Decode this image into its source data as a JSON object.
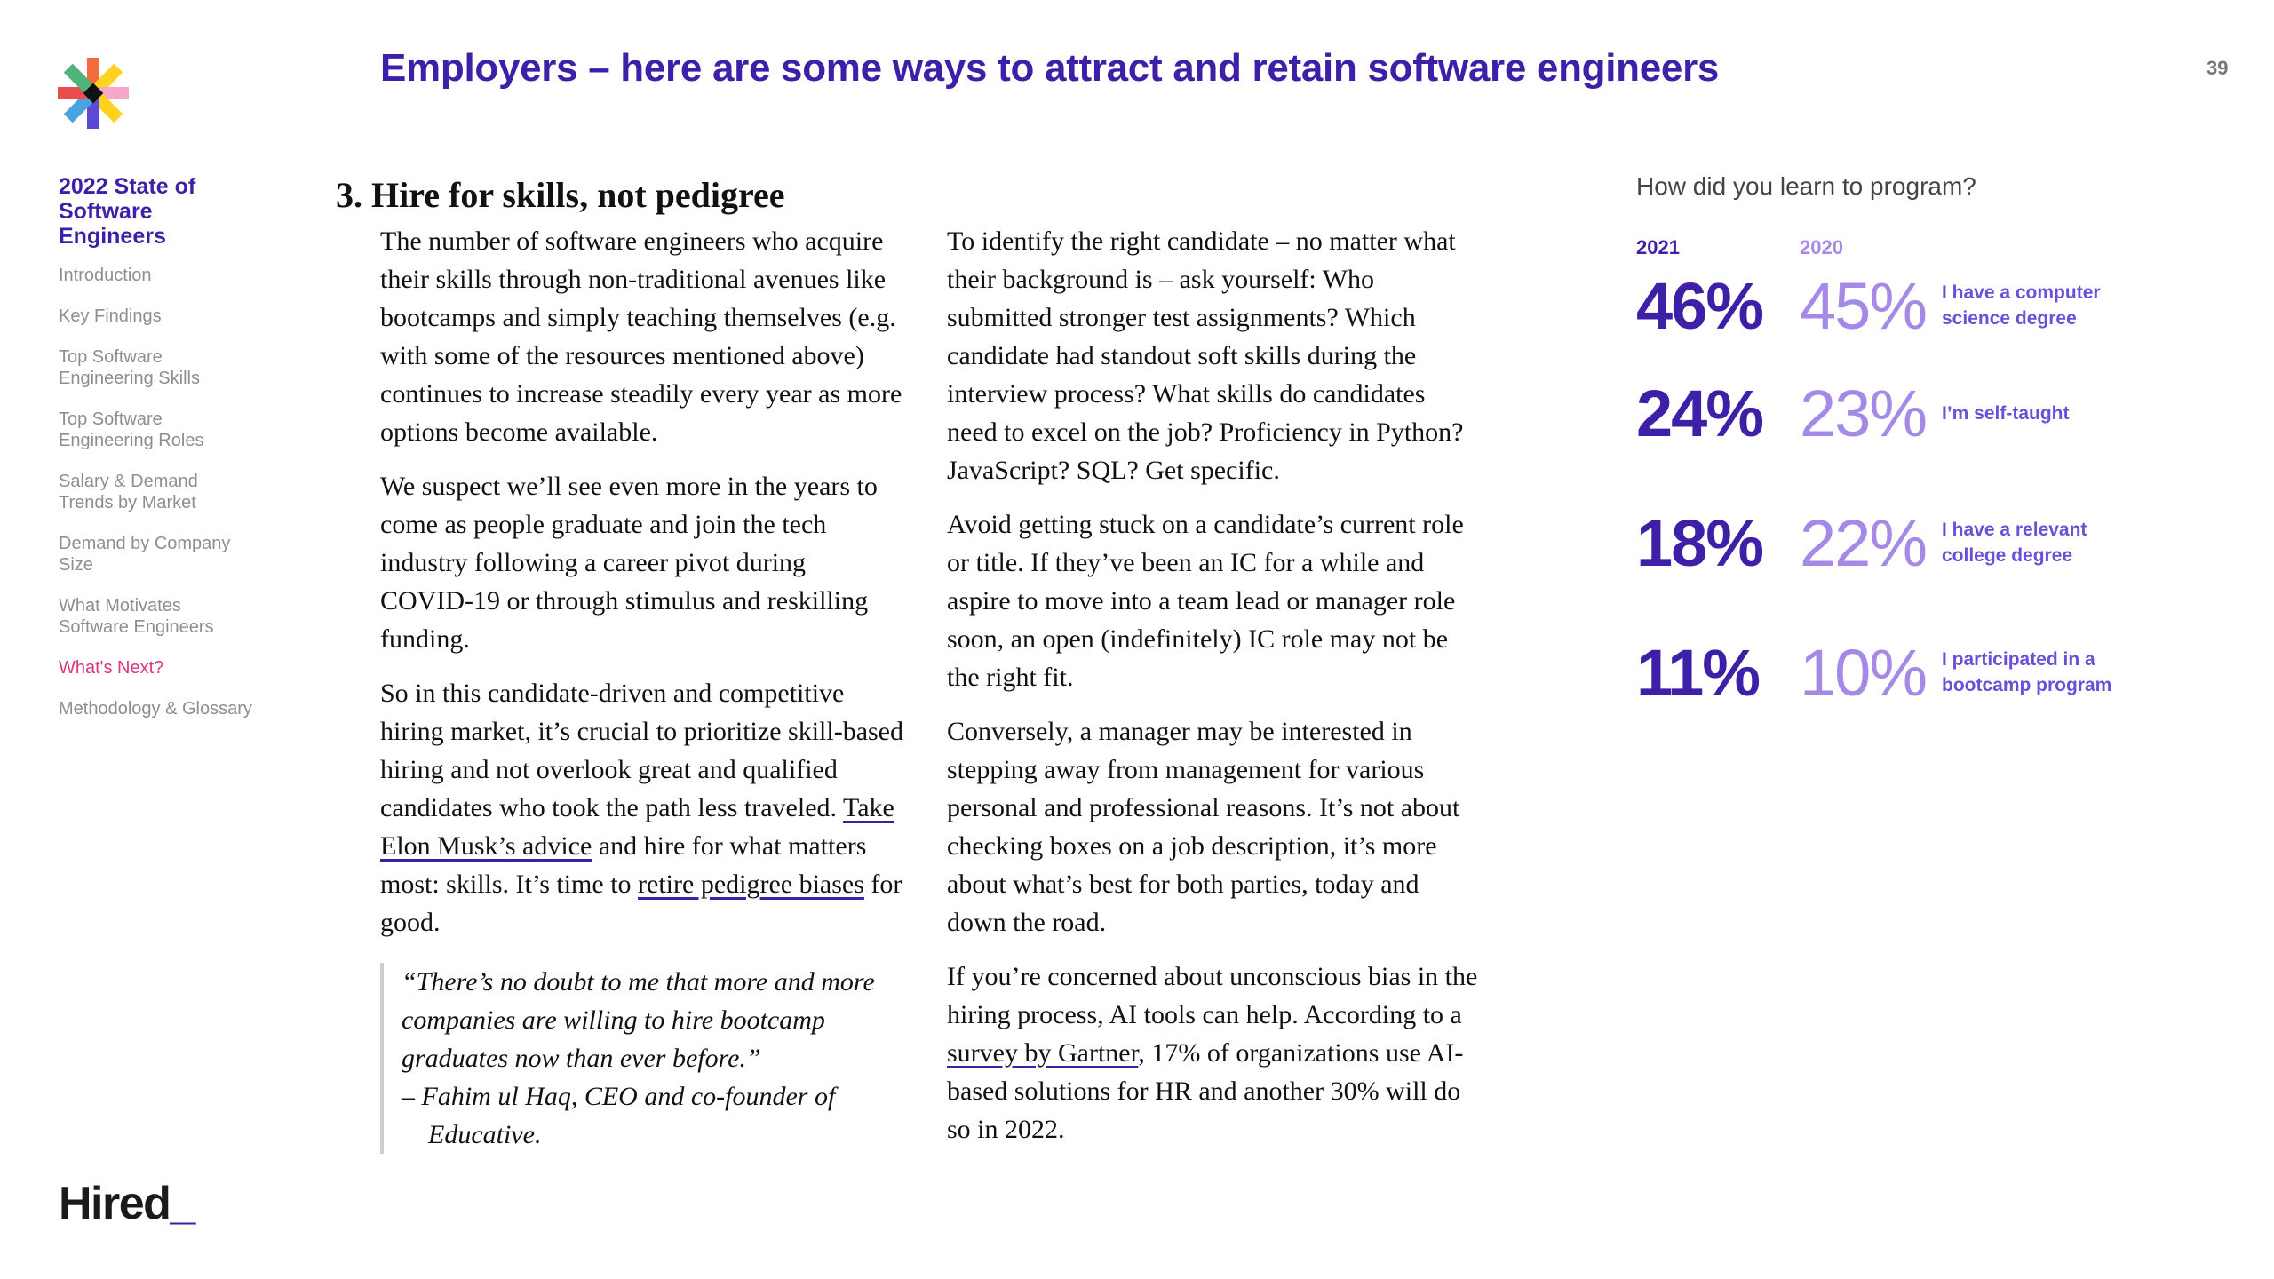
{
  "page": {
    "title": "Employers – here are some ways to attract and retain software engineers",
    "number": "39"
  },
  "sidebar": {
    "report_title": "2022 State of Software Engineers",
    "items": [
      {
        "label": "Introduction"
      },
      {
        "label": "Key Findings"
      },
      {
        "label": "Top Software Engineering Skills"
      },
      {
        "label": "Top Software Engineering Roles"
      },
      {
        "label": "Salary & Demand Trends by Market"
      },
      {
        "label": "Demand by Company Size"
      },
      {
        "label": "What Motivates Software Engineers"
      },
      {
        "label": "What's Next?",
        "active": true
      },
      {
        "label": "Methodology & Glossary"
      }
    ],
    "brand": "Hired",
    "brand_suffix": "_"
  },
  "section": {
    "number": "3.",
    "heading": "Hire for skills, not pedigree"
  },
  "column1": {
    "p1": "The number of software engineers who acquire their skills through non-traditional avenues like bootcamps and simply teaching themselves (e.g. with some of the resources mentioned above) continues to increase steadily every year as more options become available.",
    "p2": "We suspect we’ll see even more in the years to come as people graduate and join the tech industry following a career pivot during COVID-19 or through stimulus and reskilling funding.",
    "p3_a": "So in this candidate-driven and competitive hiring market, it’s crucial to prioritize skill-based hiring and not overlook great and qualified candidates who took the path less traveled. ",
    "p3_link1": "Take Elon Musk’s advice",
    "p3_b": " and hire for what matters most: skills. It’s time to ",
    "p3_link2": "retire pedigree biases",
    "p3_c": " for good.",
    "quote_text": "“There’s no doubt to me that more and more companies are willing to hire bootcamp graduates now than ever before.”",
    "quote_attribution": "– Fahim ul Haq, CEO and co-founder of Educative."
  },
  "column2": {
    "p1": "To identify the right candidate – no matter what their background is – ask yourself: Who submitted stronger test assignments? Which candidate had standout soft skills during the interview process? What skills do candidates need to excel on the job? Proficiency in Python? JavaScript? SQL? Get specific.",
    "p2": "Avoid getting stuck on a candidate’s current role or title. If they’ve been an IC for a while and aspire to move into a team lead or manager role soon, an open (indefinitely) IC role may not be the right fit.",
    "p3": "Conversely, a manager may be interested in stepping away from management for various personal and professional reasons. It’s not about checking boxes on a job description, it’s more about what’s best for both parties, today and down the road.",
    "p4_a": "If you’re concerned about unconscious bias in the hiring process, AI tools can help. According to a ",
    "p4_link": "survey by Gartner",
    "p4_b": ", 17% of organizations use AI-based solutions for HR and another 30% will do so in 2022."
  },
  "stats": {
    "question": "How did you learn to program?",
    "year_a": "2021",
    "year_b": "2020",
    "rows": [
      {
        "pct_2021": "46%",
        "pct_2020": "45%",
        "label": "I have a computer science degree"
      },
      {
        "pct_2021": "24%",
        "pct_2020": "23%",
        "label": "I’m self-taught"
      },
      {
        "pct_2021": "18%",
        "pct_2020": "22%",
        "label": "I have a relevant college degree"
      },
      {
        "pct_2021": "11%",
        "pct_2020": "10%",
        "label": "I participated in a bootcamp program"
      }
    ]
  },
  "colors": {
    "primary": "#3d1fa8",
    "secondary": "#a48ae6",
    "active_nav": "#d8367e"
  }
}
